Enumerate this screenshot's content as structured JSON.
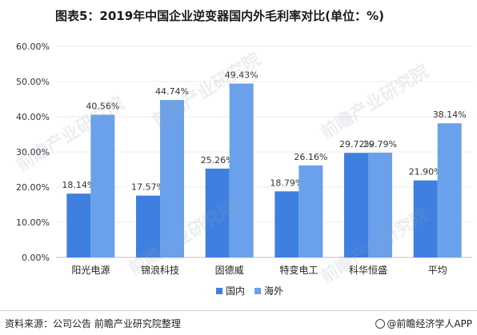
{
  "title": "图表5：2019年中国企业逆变器国内外毛利率对比(单位：%)",
  "footer": {
    "source": "资料来源：公司公告   前瞻产业研究院整理",
    "brand": "@前瞻经济学人APP"
  },
  "watermark": "前瞻产业研究院",
  "colors": {
    "domestic": "#3e7fe0",
    "overseas": "#6aa1ea",
    "axis": "#bfbfbf",
    "grid": "#ececec"
  },
  "chart_data": {
    "type": "bar",
    "categories": [
      "阳光电源",
      "锦浪科技",
      "固德威",
      "特变电工",
      "科华恒盛",
      "平均"
    ],
    "series": [
      {
        "name": "国内",
        "values": [
          18.14,
          17.57,
          25.26,
          18.79,
          29.72,
          21.9
        ],
        "labels": [
          "18.14%",
          "17.57%",
          "25.26%",
          "18.79%",
          "29.72%",
          "21.90%"
        ]
      },
      {
        "name": "海外",
        "values": [
          40.56,
          44.74,
          49.43,
          26.16,
          29.79,
          38.14
        ],
        "labels": [
          "40.56%",
          "44.74%",
          "49.43%",
          "26.16%",
          "29.79%",
          "38.14%"
        ]
      }
    ],
    "ylim": [
      0,
      60
    ],
    "yticks": [
      "0.00%",
      "10.00%",
      "20.00%",
      "30.00%",
      "40.00%",
      "50.00%",
      "60.00%"
    ],
    "legend": "bottom"
  }
}
